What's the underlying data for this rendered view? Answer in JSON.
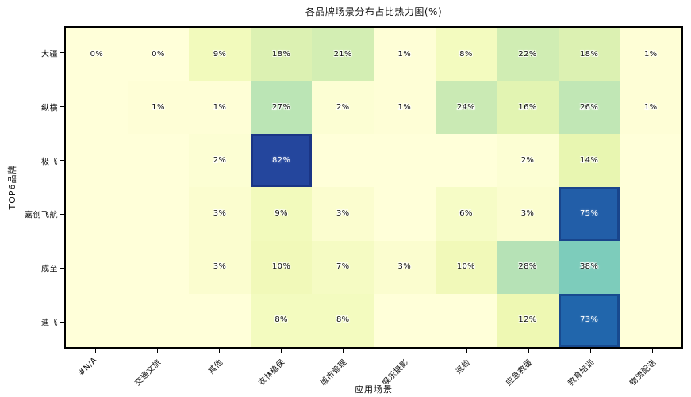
{
  "title": "各品牌场景分布占比热力图(%)",
  "chart_data": {
    "type": "heatmap",
    "title": "各品牌场景分布占比热力图(%)",
    "xlabel": "应用场景",
    "ylabel": "TOP6品牌",
    "x_categories": [
      "#N/A",
      "交通文旅",
      "其他",
      "农林植保",
      "城市管理",
      "娱乐摄影",
      "巡检",
      "应急救援",
      "教育培训",
      "物流配送"
    ],
    "y_categories": [
      "大疆",
      "纵横",
      "极飞",
      "嘉创飞航",
      "成至",
      "迪飞"
    ],
    "unit": "%",
    "values_percent": [
      [
        0,
        0,
        9,
        18,
        21,
        1,
        8,
        22,
        18,
        1
      ],
      [
        null,
        1,
        1,
        27,
        2,
        1,
        24,
        16,
        26,
        1
      ],
      [
        null,
        null,
        2,
        82,
        null,
        null,
        null,
        2,
        14,
        null
      ],
      [
        null,
        null,
        3,
        9,
        3,
        null,
        6,
        3,
        75,
        null
      ],
      [
        null,
        null,
        3,
        10,
        7,
        3,
        10,
        28,
        38,
        null
      ],
      [
        null,
        null,
        null,
        8,
        8,
        null,
        null,
        12,
        73,
        null
      ]
    ],
    "vmin": 0,
    "vmax": 100,
    "colormap": "YlGnBu",
    "colormap_stops": [
      [
        0.0,
        "#ffffd9"
      ],
      [
        0.125,
        "#edf8b1"
      ],
      [
        0.25,
        "#c7e9b4"
      ],
      [
        0.375,
        "#7fcdbb"
      ],
      [
        0.5,
        "#41b6c4"
      ],
      [
        0.625,
        "#1d91c0"
      ],
      [
        0.75,
        "#225ea8"
      ],
      [
        0.875,
        "#253494"
      ],
      [
        1.0,
        "#081d58"
      ]
    ],
    "grid": false,
    "legend": "none",
    "frame_color": "#000000",
    "background_color": "#ffffff"
  }
}
